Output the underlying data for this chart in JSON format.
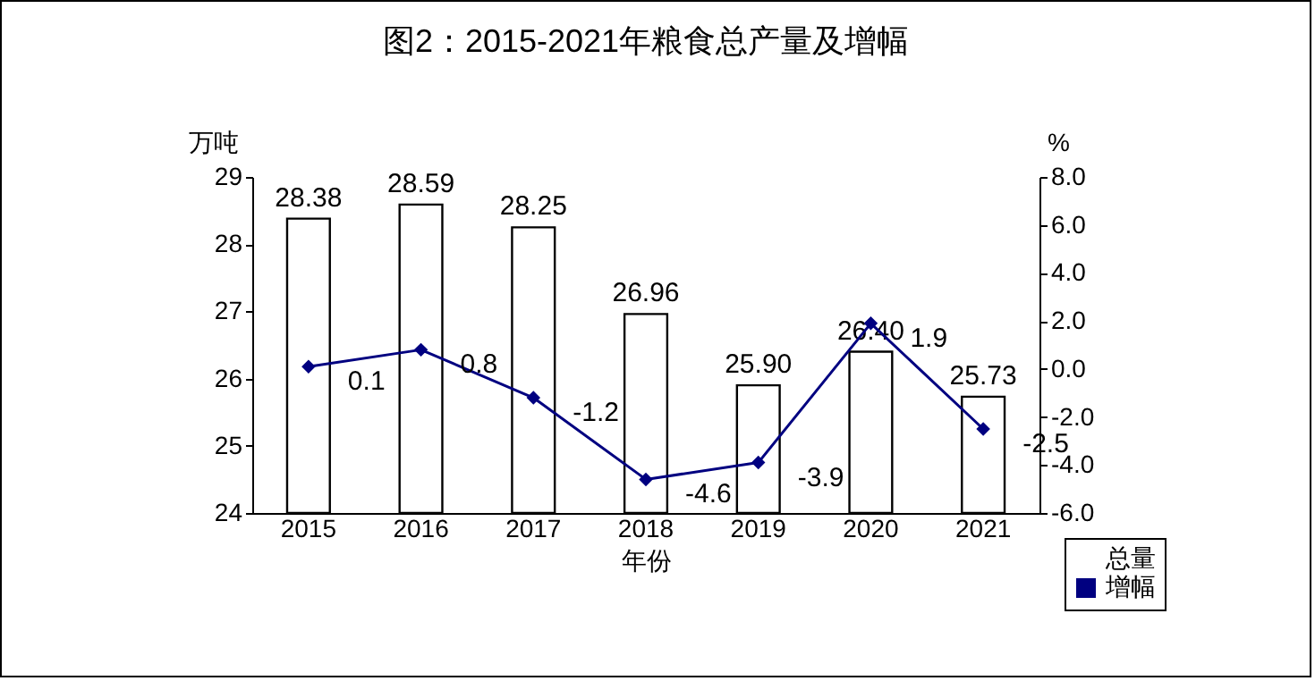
{
  "chart_data": {
    "type": "bar",
    "title": "图2：2015-2021年粮食总产量及增幅",
    "xlabel": "年份",
    "ylabel": "万吨",
    "y2label": "%",
    "categories": [
      "2015",
      "2016",
      "2017",
      "2018",
      "2019",
      "2020",
      "2021"
    ],
    "series": [
      {
        "name": "总量",
        "color": "#ffffff",
        "values": [
          28.38,
          28.59,
          28.25,
          26.96,
          25.9,
          26.4,
          25.73
        ],
        "value_labels": [
          "28.38",
          "28.59",
          "28.25",
          "26.96",
          "25.90",
          "26.40",
          "25.73"
        ]
      },
      {
        "name": "增幅",
        "type": "line",
        "axis": "y2",
        "color": "#000080",
        "marker": "diamond",
        "values": [
          0.1,
          0.8,
          -1.2,
          -4.6,
          -3.9,
          1.9,
          -2.5
        ],
        "value_labels": [
          "0.1",
          "0.8",
          "-1.2",
          "-4.6",
          "-3.9",
          "1.9",
          "-2.5"
        ]
      }
    ],
    "ylim": [
      24,
      29
    ],
    "yticks": [
      24,
      25,
      26,
      27,
      28,
      29
    ],
    "y2lim": [
      -6,
      8
    ],
    "y2ticks": [
      {
        "value": -6,
        "label": "-6.0"
      },
      {
        "value": -4,
        "label": "-4.0"
      },
      {
        "value": -2,
        "label": "-2.0"
      },
      {
        "value": 0,
        "label": "0.0"
      },
      {
        "value": 2,
        "label": "2.0"
      },
      {
        "value": 4,
        "label": "4.0"
      },
      {
        "value": 6,
        "label": "6.0"
      },
      {
        "value": 8,
        "label": "8.0"
      }
    ],
    "legend": "bottom right",
    "grid": false
  }
}
